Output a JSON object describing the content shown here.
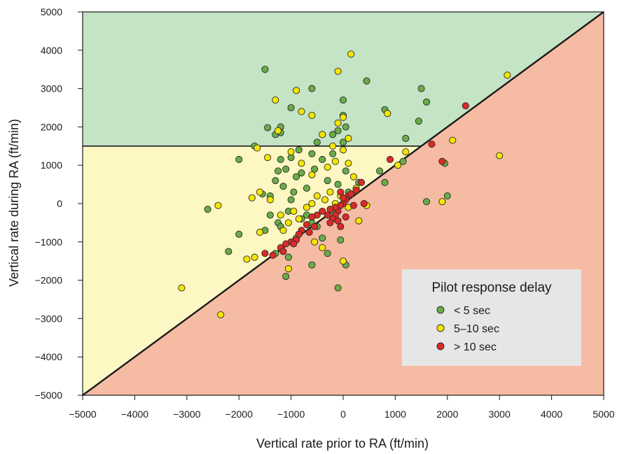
{
  "chart_data": {
    "type": "scatter",
    "xlabel": "Vertical rate prior to RA (ft/min)",
    "ylabel": "Vertical rate during RA (ft/min)",
    "xlim": [
      -5000,
      5000
    ],
    "ylim": [
      -5000,
      5000
    ],
    "xticks": [
      "−5000",
      "−4000",
      "−3000",
      "−2000",
      "−1000",
      "0",
      "1000",
      "2000",
      "3000",
      "4000",
      "5000"
    ],
    "yticks": [
      "5000",
      "4000",
      "3000",
      "2000",
      "1000",
      "0",
      "−1000",
      "−2000",
      "−3000",
      "−4000",
      "−5000"
    ],
    "xtick_values": [
      -5000,
      -4000,
      -3000,
      -2000,
      -1000,
      0,
      1000,
      2000,
      3000,
      4000,
      5000
    ],
    "ytick_values": [
      5000,
      4000,
      3000,
      2000,
      1000,
      0,
      -1000,
      -2000,
      -3000,
      -4000,
      -5000
    ],
    "regions": {
      "horizontal_line_y": 1500,
      "diagonal": "y = x",
      "colors": {
        "green": "#c5e3c5",
        "yellow": "#fdf7c4",
        "red": "#f6bba3"
      }
    },
    "legend": {
      "title": "Pilot response delay",
      "position": "bottom-right",
      "entries": [
        "< 5 sec",
        "5–10 sec",
        "> 10 sec"
      ]
    },
    "series": [
      {
        "name": "< 5 sec",
        "color": "#6aac48",
        "points": [
          [
            -1500,
            3500
          ],
          [
            -600,
            3000
          ],
          [
            0,
            2700
          ],
          [
            450,
            3200
          ],
          [
            1500,
            3000
          ],
          [
            1600,
            2650
          ],
          [
            -1450,
            1980
          ],
          [
            -1300,
            1800
          ],
          [
            -1200,
            2000
          ],
          [
            -1200,
            1850
          ],
          [
            -1000,
            2500
          ],
          [
            -200,
            1800
          ],
          [
            -100,
            1900
          ],
          [
            0,
            2300
          ],
          [
            50,
            2000
          ],
          [
            800,
            2450
          ],
          [
            1200,
            1700
          ],
          [
            1450,
            2150
          ],
          [
            -1700,
            1500
          ],
          [
            -2000,
            1150
          ],
          [
            -1550,
            250
          ],
          [
            -1400,
            200
          ],
          [
            -1300,
            600
          ],
          [
            -1250,
            850
          ],
          [
            -1200,
            1150
          ],
          [
            -1100,
            900
          ],
          [
            -1000,
            1200
          ],
          [
            -950,
            300
          ],
          [
            -900,
            700
          ],
          [
            -850,
            1400
          ],
          [
            -800,
            800
          ],
          [
            -700,
            400
          ],
          [
            -600,
            1300
          ],
          [
            -550,
            900
          ],
          [
            -500,
            1600
          ],
          [
            -400,
            1150
          ],
          [
            -300,
            600
          ],
          [
            -200,
            1300
          ],
          [
            -100,
            500
          ],
          [
            0,
            1600
          ],
          [
            50,
            850
          ],
          [
            100,
            300
          ],
          [
            300,
            550
          ],
          [
            700,
            850
          ],
          [
            800,
            550
          ],
          [
            1150,
            1100
          ],
          [
            1950,
            1050
          ],
          [
            1600,
            50
          ],
          [
            2000,
            200
          ],
          [
            -2600,
            -150
          ],
          [
            -2200,
            -1250
          ],
          [
            -2000,
            -800
          ],
          [
            -1500,
            -700
          ],
          [
            -1400,
            -300
          ],
          [
            -1300,
            -1300
          ],
          [
            -1250,
            -500
          ],
          [
            -1100,
            -1900
          ],
          [
            -1050,
            -1400
          ],
          [
            -900,
            -900
          ],
          [
            -700,
            -300
          ],
          [
            -600,
            -500
          ],
          [
            -500,
            -600
          ],
          [
            -400,
            -900
          ],
          [
            -300,
            -1300
          ],
          [
            -200,
            -200
          ],
          [
            -100,
            -2200
          ],
          [
            -50,
            -950
          ],
          [
            50,
            -1600
          ],
          [
            -600,
            -1600
          ],
          [
            -1200,
            -600
          ],
          [
            -1000,
            100
          ],
          [
            -1150,
            450
          ],
          [
            -1050,
            -200
          ],
          [
            -800,
            -400
          ]
        ]
      },
      {
        "name": "5–10 sec",
        "color": "#f4e600",
        "points": [
          [
            150,
            3900
          ],
          [
            -100,
            3450
          ],
          [
            -900,
            2950
          ],
          [
            3150,
            3350
          ],
          [
            -1300,
            2700
          ],
          [
            -800,
            2400
          ],
          [
            -600,
            2300
          ],
          [
            -1250,
            1900
          ],
          [
            -400,
            1800
          ],
          [
            -100,
            2100
          ],
          [
            0,
            2250
          ],
          [
            100,
            1700
          ],
          [
            850,
            2350
          ],
          [
            -1650,
            1450
          ],
          [
            -1000,
            1350
          ],
          [
            -800,
            1050
          ],
          [
            -600,
            750
          ],
          [
            -300,
            950
          ],
          [
            -200,
            1500
          ],
          [
            -150,
            1100
          ],
          [
            0,
            1400
          ],
          [
            100,
            1050
          ],
          [
            200,
            700
          ],
          [
            250,
            400
          ],
          [
            1050,
            1000
          ],
          [
            1200,
            1350
          ],
          [
            2100,
            1650
          ],
          [
            3000,
            1250
          ],
          [
            1900,
            50
          ],
          [
            -1750,
            150
          ],
          [
            -1600,
            300
          ],
          [
            -1450,
            1200
          ],
          [
            -1400,
            100
          ],
          [
            -1200,
            -300
          ],
          [
            -1150,
            -700
          ],
          [
            -1050,
            -500
          ],
          [
            -950,
            -200
          ],
          [
            -850,
            -400
          ],
          [
            -700,
            -100
          ],
          [
            -600,
            0
          ],
          [
            -500,
            200
          ],
          [
            -350,
            100
          ],
          [
            -250,
            300
          ],
          [
            -150,
            0
          ],
          [
            -50,
            200
          ],
          [
            100,
            -100
          ],
          [
            300,
            -450
          ],
          [
            450,
            -50
          ],
          [
            -1850,
            -1450
          ],
          [
            -1700,
            -1400
          ],
          [
            -1050,
            -1700
          ],
          [
            -400,
            -1150
          ],
          [
            -550,
            -1000
          ],
          [
            0,
            -1500
          ],
          [
            -3100,
            -2200
          ],
          [
            -2350,
            -2900
          ],
          [
            -2400,
            -50
          ],
          [
            -1600,
            -750
          ]
        ]
      },
      {
        "name": "> 10 sec",
        "color": "#dc2a26",
        "points": [
          [
            2350,
            2550
          ],
          [
            1700,
            1550
          ],
          [
            1900,
            1100
          ],
          [
            900,
            1150
          ],
          [
            350,
            550
          ],
          [
            250,
            350
          ],
          [
            100,
            200
          ],
          [
            50,
            100
          ],
          [
            0,
            0
          ],
          [
            -50,
            -50
          ],
          [
            -100,
            -200
          ],
          [
            -150,
            -300
          ],
          [
            -200,
            -400
          ],
          [
            -250,
            -500
          ],
          [
            -50,
            -600
          ],
          [
            0,
            150
          ],
          [
            -400,
            -200
          ],
          [
            -500,
            -300
          ],
          [
            -600,
            -350
          ],
          [
            -700,
            -550
          ],
          [
            -800,
            -700
          ],
          [
            -850,
            -800
          ],
          [
            -900,
            -950
          ],
          [
            -1000,
            -1000
          ],
          [
            -1100,
            -1050
          ],
          [
            -1200,
            -1150
          ],
          [
            -1500,
            -1300
          ],
          [
            -1350,
            -1350
          ],
          [
            -550,
            -600
          ],
          [
            -300,
            -300
          ],
          [
            -150,
            -100
          ],
          [
            50,
            -350
          ],
          [
            200,
            -50
          ],
          [
            400,
            0
          ],
          [
            -650,
            -750
          ],
          [
            -950,
            -1050
          ],
          [
            -1150,
            -1250
          ],
          [
            -50,
            300
          ],
          [
            150,
            250
          ],
          [
            -100,
            -450
          ],
          [
            -250,
            -150
          ]
        ]
      }
    ]
  }
}
